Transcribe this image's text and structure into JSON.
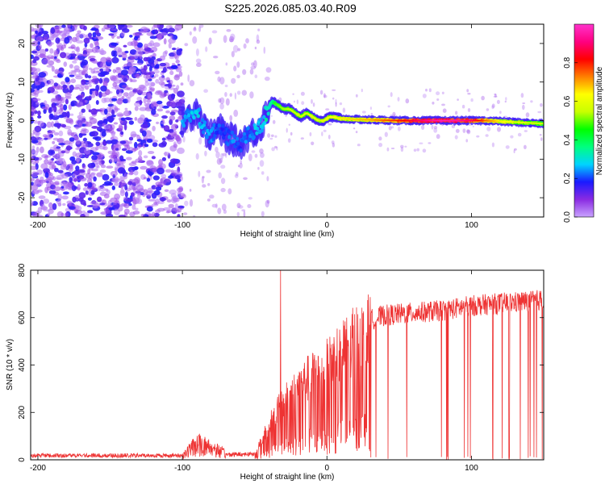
{
  "figure": {
    "title": "S225.2026.085.03.40.R09"
  },
  "chart_data": [
    {
      "type": "heatmap",
      "title": "",
      "xlabel": "Height of straight line (km)",
      "ylabel": "Frequency (Hz)",
      "xlim": [
        -205,
        150
      ],
      "ylim": [
        -25,
        25
      ],
      "xticks": [
        -200,
        -100,
        0,
        100
      ],
      "yticks": [
        -20,
        -10,
        0,
        10,
        20
      ],
      "colorbar": {
        "label": "Normalized spectral amplitude",
        "range": [
          0,
          1
        ],
        "ticks": [
          "0.0",
          "0.2",
          "0.4",
          "0.6",
          "0.8"
        ],
        "tick_values": [
          0,
          0.2,
          0.4,
          0.6,
          0.8
        ],
        "colors": [
          "#c9a3ff",
          "#8a2be2",
          "#1a1aff",
          "#00d4ff",
          "#00ff80",
          "#00ff00",
          "#c8ff00",
          "#ffff00",
          "#ff8000",
          "#ff0000",
          "#ff0080",
          "#ff33cc"
        ]
      },
      "noise_region_x": [
        -205,
        -100
      ],
      "sparse_region_x": [
        -100,
        -40
      ],
      "signal_track": [
        {
          "x": -100,
          "y": 0,
          "amp": 0.25
        },
        {
          "x": -95,
          "y": 1,
          "amp": 0.28
        },
        {
          "x": -90,
          "y": 3,
          "amp": 0.3
        },
        {
          "x": -85,
          "y": -2,
          "amp": 0.28
        },
        {
          "x": -80,
          "y": -4,
          "amp": 0.25
        },
        {
          "x": -75,
          "y": -2,
          "amp": 0.22
        },
        {
          "x": -70,
          "y": -4,
          "amp": 0.22
        },
        {
          "x": -65,
          "y": -5,
          "amp": 0.25
        },
        {
          "x": -60,
          "y": -6,
          "amp": 0.22
        },
        {
          "x": -55,
          "y": -4,
          "amp": 0.25
        },
        {
          "x": -50,
          "y": -3,
          "amp": 0.28
        },
        {
          "x": -45,
          "y": -1,
          "amp": 0.3
        },
        {
          "x": -42,
          "y": 2,
          "amp": 0.35
        },
        {
          "x": -38,
          "y": 5,
          "amp": 0.4
        },
        {
          "x": -34,
          "y": 4,
          "amp": 0.45
        },
        {
          "x": -30,
          "y": 3,
          "amp": 0.48
        },
        {
          "x": -26,
          "y": 3,
          "amp": 0.5
        },
        {
          "x": -22,
          "y": 2,
          "amp": 0.5
        },
        {
          "x": -18,
          "y": 1,
          "amp": 0.52
        },
        {
          "x": -14,
          "y": 2,
          "amp": 0.52
        },
        {
          "x": -10,
          "y": 1,
          "amp": 0.55
        },
        {
          "x": -6,
          "y": 0,
          "amp": 0.55
        },
        {
          "x": -2,
          "y": 0,
          "amp": 0.55
        },
        {
          "x": 2,
          "y": 1,
          "amp": 0.58
        },
        {
          "x": 10,
          "y": 0.5,
          "amp": 0.6
        },
        {
          "x": 20,
          "y": 0.3,
          "amp": 0.62
        },
        {
          "x": 30,
          "y": 0.2,
          "amp": 0.65
        },
        {
          "x": 40,
          "y": 0.1,
          "amp": 0.7
        },
        {
          "x": 50,
          "y": 0,
          "amp": 0.75
        },
        {
          "x": 60,
          "y": 0,
          "amp": 0.82
        },
        {
          "x": 70,
          "y": 0,
          "amp": 0.88
        },
        {
          "x": 80,
          "y": 0,
          "amp": 0.92
        },
        {
          "x": 90,
          "y": 0,
          "amp": 0.9
        },
        {
          "x": 100,
          "y": 0,
          "amp": 0.85
        },
        {
          "x": 110,
          "y": 0,
          "amp": 0.7
        },
        {
          "x": 120,
          "y": -0.2,
          "amp": 0.6
        },
        {
          "x": 130,
          "y": -0.4,
          "amp": 0.55
        },
        {
          "x": 140,
          "y": -0.6,
          "amp": 0.52
        },
        {
          "x": 150,
          "y": -0.8,
          "amp": 0.5
        }
      ],
      "grid": false
    },
    {
      "type": "line",
      "title": "",
      "xlabel": "Height of straight line (km)",
      "ylabel": "SNR (10 * v/v)",
      "xlim": [
        -205,
        150
      ],
      "ylim": [
        0,
        800
      ],
      "xticks": [
        -200,
        -100,
        0,
        100
      ],
      "yticks": [
        0,
        200,
        400,
        600,
        800
      ],
      "color": "#ee3333",
      "envelope": [
        {
          "x": -205,
          "y": 18
        },
        {
          "x": -100,
          "y": 18
        },
        {
          "x": -90,
          "y": 60
        },
        {
          "x": -80,
          "y": 50
        },
        {
          "x": -70,
          "y": 22
        },
        {
          "x": -50,
          "y": 25
        },
        {
          "x": -45,
          "y": 90
        },
        {
          "x": -40,
          "y": 170
        },
        {
          "x": -30,
          "y": 260
        },
        {
          "x": -20,
          "y": 330
        },
        {
          "x": -10,
          "y": 390
        },
        {
          "x": 0,
          "y": 430
        },
        {
          "x": 10,
          "y": 490
        },
        {
          "x": 20,
          "y": 550
        },
        {
          "x": 30,
          "y": 590
        },
        {
          "x": 40,
          "y": 610
        },
        {
          "x": 60,
          "y": 620
        },
        {
          "x": 80,
          "y": 630
        },
        {
          "x": 100,
          "y": 650
        },
        {
          "x": 120,
          "y": 660
        },
        {
          "x": 140,
          "y": 670
        },
        {
          "x": 150,
          "y": 675
        }
      ],
      "spike": {
        "x": -32,
        "y": 800
      },
      "grid": false
    }
  ]
}
